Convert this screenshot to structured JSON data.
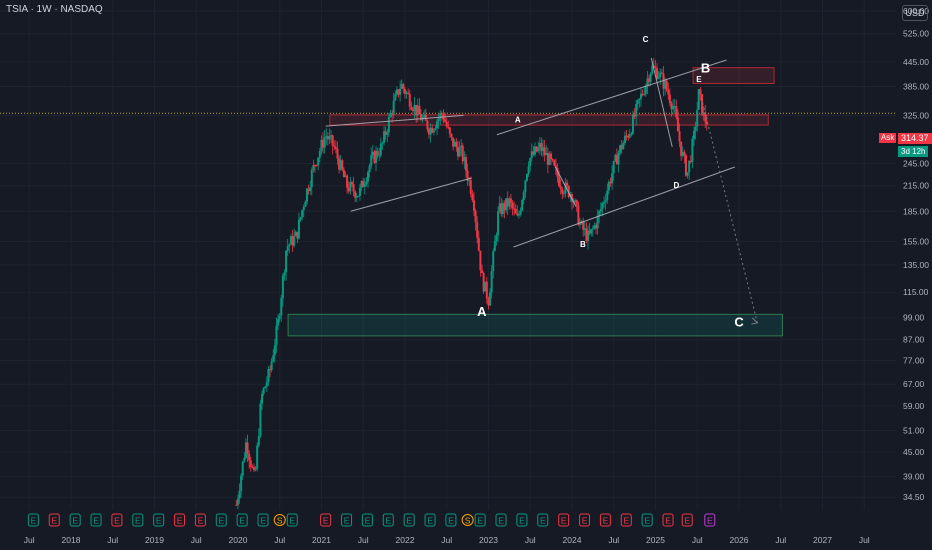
{
  "header": {
    "symbol_title": "TSIA · 1W · NASDAQ",
    "currency": "USD"
  },
  "price_tags": {
    "ask_label": "Ask",
    "ask_price": "314.37",
    "countdown": "3d 12h"
  },
  "colors": {
    "background": "#161a25",
    "up": "#089981",
    "down": "#f23645",
    "grid": "#1f2330",
    "text": "#b2b5be"
  },
  "chart_data": {
    "type": "candlestick",
    "title": "TSIA · 1W · NASDAQ",
    "y_scale": "log",
    "ylim": [
      32,
      640
    ],
    "y_ticks": [
      600.0,
      525.0,
      445.0,
      385.0,
      325.0,
      245.0,
      215.0,
      185.0,
      155.0,
      135.0,
      115.0,
      99.0,
      87.0,
      77.0,
      67.0,
      59.0,
      51.0,
      45.0,
      39.0,
      34.5
    ],
    "x_ticks": [
      {
        "label": "Jul",
        "t": 2017.5
      },
      {
        "label": "2018",
        "t": 2018.0
      },
      {
        "label": "Jul",
        "t": 2018.5
      },
      {
        "label": "2019",
        "t": 2019.0
      },
      {
        "label": "Jul",
        "t": 2019.5
      },
      {
        "label": "2020",
        "t": 2020.0
      },
      {
        "label": "Jul",
        "t": 2020.5
      },
      {
        "label": "2021",
        "t": 2021.0
      },
      {
        "label": "Jul",
        "t": 2021.5
      },
      {
        "label": "2022",
        "t": 2022.0
      },
      {
        "label": "Jul",
        "t": 2022.5
      },
      {
        "label": "2023",
        "t": 2023.0
      },
      {
        "label": "Jul",
        "t": 2023.5
      },
      {
        "label": "2024",
        "t": 2024.0
      },
      {
        "label": "Jul",
        "t": 2024.5
      },
      {
        "label": "2025",
        "t": 2025.0
      },
      {
        "label": "Jul",
        "t": 2025.5
      },
      {
        "label": "2026",
        "t": 2026.0
      },
      {
        "label": "Jul",
        "t": 2026.5
      },
      {
        "label": "2027",
        "t": 2027.0
      },
      {
        "label": "Jul",
        "t": 2027.5
      }
    ],
    "xlim": [
      2017.15,
      2027.88
    ],
    "current_price": 314.37,
    "dotted_price_line": 329,
    "path": [
      [
        2019.98,
        33
      ],
      [
        2020.1,
        48
      ],
      [
        2020.2,
        38
      ],
      [
        2020.28,
        62
      ],
      [
        2020.38,
        72
      ],
      [
        2020.48,
        96
      ],
      [
        2020.58,
        150
      ],
      [
        2020.7,
        160
      ],
      [
        2020.8,
        200
      ],
      [
        2020.92,
        245
      ],
      [
        2021.05,
        290
      ],
      [
        2021.15,
        270
      ],
      [
        2021.3,
        215
      ],
      [
        2021.45,
        205
      ],
      [
        2021.6,
        250
      ],
      [
        2021.72,
        270
      ],
      [
        2021.85,
        340
      ],
      [
        2021.95,
        390
      ],
      [
        2022.05,
        360
      ],
      [
        2022.15,
        330
      ],
      [
        2022.3,
        300
      ],
      [
        2022.45,
        330
      ],
      [
        2022.55,
        280
      ],
      [
        2022.68,
        260
      ],
      [
        2022.82,
        200
      ],
      [
        2022.92,
        125
      ],
      [
        2023.0,
        110
      ],
      [
        2023.12,
        185
      ],
      [
        2023.25,
        195
      ],
      [
        2023.35,
        175
      ],
      [
        2023.48,
        250
      ],
      [
        2023.62,
        270
      ],
      [
        2023.75,
        245
      ],
      [
        2023.88,
        215
      ],
      [
        2024.0,
        205
      ],
      [
        2024.1,
        170
      ],
      [
        2024.2,
        158
      ],
      [
        2024.3,
        175
      ],
      [
        2024.42,
        210
      ],
      [
        2024.55,
        260
      ],
      [
        2024.7,
        300
      ],
      [
        2024.82,
        360
      ],
      [
        2024.95,
        430
      ],
      [
        2025.03,
        420
      ],
      [
        2025.12,
        385
      ],
      [
        2025.22,
        340
      ],
      [
        2025.3,
        270
      ],
      [
        2025.38,
        230
      ],
      [
        2025.46,
        285
      ],
      [
        2025.52,
        370
      ],
      [
        2025.58,
        320
      ],
      [
        2025.62,
        314.37
      ]
    ],
    "zones": [
      {
        "kind": "resistance",
        "t1": 2025.45,
        "t2": 2026.42,
        "low": 392,
        "high": 430
      },
      {
        "kind": "resistance",
        "t1": 2021.1,
        "t2": 2026.35,
        "low": 307,
        "high": 326
      },
      {
        "kind": "support",
        "t1": 2020.6,
        "t2": 2026.52,
        "low": 89,
        "high": 101
      }
    ],
    "trendlines": [
      {
        "p1": [
          2021.05,
          305
        ],
        "p2": [
          2022.7,
          325
        ]
      },
      {
        "p1": [
          2021.35,
          185
        ],
        "p2": [
          2022.8,
          225
        ]
      },
      {
        "p1": [
          2023.1,
          290
        ],
        "p2": [
          2025.85,
          450
        ]
      },
      {
        "p1": [
          2023.3,
          150
        ],
        "p2": [
          2025.95,
          240
        ]
      },
      {
        "p1": [
          2023.8,
          240
        ],
        "p2": [
          2024.05,
          190
        ]
      },
      {
        "p1": [
          2024.95,
          455
        ],
        "p2": [
          2025.2,
          270
        ]
      }
    ],
    "projection": [
      [
        2025.55,
        360
      ],
      [
        2026.22,
        96
      ]
    ],
    "annotations": [
      {
        "text": "A",
        "t": 2022.92,
        "price": 100,
        "size": 13
      },
      {
        "text": "A",
        "t": 2023.35,
        "price": 312,
        "size": 8
      },
      {
        "text": "B",
        "t": 2024.13,
        "price": 150,
        "size": 8
      },
      {
        "text": "C",
        "t": 2024.88,
        "price": 500,
        "size": 8
      },
      {
        "text": "D",
        "t": 2025.25,
        "price": 212,
        "size": 8
      },
      {
        "text": "E",
        "t": 2025.52,
        "price": 395,
        "size": 8
      },
      {
        "text": "B",
        "t": 2025.6,
        "price": 418,
        "size": 13
      },
      {
        "text": "C",
        "t": 2026.0,
        "price": 94,
        "size": 13
      }
    ],
    "events": [
      {
        "t": 2017.55,
        "label": "E",
        "color": "#089981"
      },
      {
        "t": 2017.8,
        "label": "E",
        "color": "#f23645"
      },
      {
        "t": 2018.05,
        "label": "E",
        "color": "#089981"
      },
      {
        "t": 2018.3,
        "label": "E",
        "color": "#089981"
      },
      {
        "t": 2018.55,
        "label": "E",
        "color": "#f23645"
      },
      {
        "t": 2018.8,
        "label": "E",
        "color": "#089981"
      },
      {
        "t": 2019.05,
        "label": "E",
        "color": "#089981"
      },
      {
        "t": 2019.3,
        "label": "E",
        "color": "#f23645"
      },
      {
        "t": 2019.55,
        "label": "E",
        "color": "#f23645"
      },
      {
        "t": 2019.8,
        "label": "E",
        "color": "#089981"
      },
      {
        "t": 2020.05,
        "label": "E",
        "color": "#089981"
      },
      {
        "t": 2020.3,
        "label": "E",
        "color": "#089981"
      },
      {
        "t": 2020.5,
        "label": "S",
        "color": "#f7a600",
        "round": true
      },
      {
        "t": 2020.65,
        "label": "E",
        "color": "#089981"
      },
      {
        "t": 2021.05,
        "label": "E",
        "color": "#f23645"
      },
      {
        "t": 2021.3,
        "label": "E",
        "color": "#089981"
      },
      {
        "t": 2021.55,
        "label": "E",
        "color": "#089981"
      },
      {
        "t": 2021.8,
        "label": "E",
        "color": "#089981"
      },
      {
        "t": 2022.05,
        "label": "E",
        "color": "#089981"
      },
      {
        "t": 2022.3,
        "label": "E",
        "color": "#089981"
      },
      {
        "t": 2022.55,
        "label": "E",
        "color": "#089981"
      },
      {
        "t": 2022.75,
        "label": "S",
        "color": "#f7a600",
        "round": true
      },
      {
        "t": 2022.9,
        "label": "E",
        "color": "#089981"
      },
      {
        "t": 2023.15,
        "label": "E",
        "color": "#089981"
      },
      {
        "t": 2023.4,
        "label": "E",
        "color": "#089981"
      },
      {
        "t": 2023.65,
        "label": "E",
        "color": "#089981"
      },
      {
        "t": 2023.9,
        "label": "E",
        "color": "#f23645"
      },
      {
        "t": 2024.15,
        "label": "E",
        "color": "#f23645"
      },
      {
        "t": 2024.4,
        "label": "E",
        "color": "#f23645"
      },
      {
        "t": 2024.65,
        "label": "E",
        "color": "#f23645"
      },
      {
        "t": 2024.9,
        "label": "E",
        "color": "#089981"
      },
      {
        "t": 2025.15,
        "label": "E",
        "color": "#f23645"
      },
      {
        "t": 2025.38,
        "label": "E",
        "color": "#f23645"
      },
      {
        "t": 2025.65,
        "label": "E",
        "color": "#c13bd9"
      }
    ]
  }
}
